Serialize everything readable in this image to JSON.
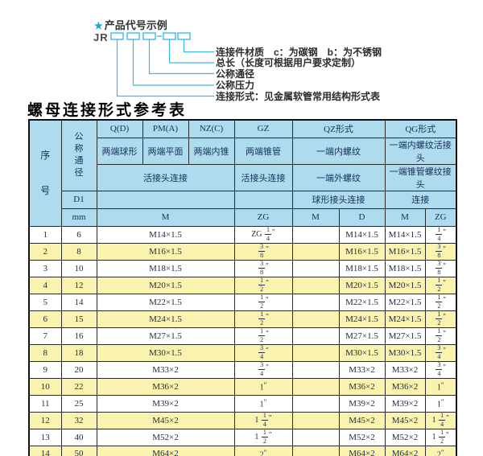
{
  "diagram": {
    "star": "★",
    "title": "产品代号示例",
    "code_prefix": "JR",
    "labels": [
      "连接件材质　c：为碳钢　b：为不锈钢",
      "总长（长度可根据用户要求定制）",
      "公称通径",
      "公称压力",
      "连接形式：见金属软管常用结构形式表"
    ],
    "line_color": "#3fb6e8"
  },
  "table_title": "螺母连接形式参考表",
  "colors": {
    "header_bg": "#AEDBEE",
    "row_alt_bg": "#FAF3AF",
    "accent_blue": "#1e9ed8"
  },
  "table": {
    "header": {
      "col_no": "序号",
      "col_dn": "公称通径",
      "d1": "D1",
      "mm": "mm",
      "q": "Q(D)",
      "pm": "PM(A)",
      "nz": "NZ(C)",
      "gz": "GZ",
      "qz": "QZ形式",
      "qg": "QG形式",
      "q_desc": "两端球形",
      "pm_desc": "两端平面",
      "nz_desc": "两端内锥",
      "gz_desc": "两端锥管",
      "qz_desc1": "一端内螺纹",
      "qg_desc1": "一端内螺纹活接头",
      "union_conn": "活接头连接",
      "gz_conn": "活接头连接",
      "qz_desc2": "一端外螺纹",
      "qg_desc2": "一端锥管螺纹接头",
      "qz_conn": "球形接头连接",
      "qg_conn": "连接",
      "m": "M",
      "zg": "ZG",
      "qz_m": "M",
      "qz_d": "D",
      "qg_m": "M",
      "qg_zg": "ZG"
    },
    "rows": [
      {
        "no": "1",
        "dn": "6",
        "m": "M14×1.5",
        "gz_zg": "ZG 1/4″",
        "qz_m": "",
        "qz_d": "M14×1.5",
        "qg_m": "M14×1.5",
        "qg_zg": "1/4″"
      },
      {
        "no": "2",
        "dn": "8",
        "m": "M16×1.5",
        "gz_zg": "3/8″",
        "qz_m": "",
        "qz_d": "M16×1.5",
        "qg_m": "M16×1.5",
        "qg_zg": "3/8″"
      },
      {
        "no": "3",
        "dn": "10",
        "m": "M18×1.5",
        "gz_zg": "3/8″",
        "qz_m": "",
        "qz_d": "M18×1.5",
        "qg_m": "M18×1.5",
        "qg_zg": "3/8″"
      },
      {
        "no": "4",
        "dn": "12",
        "m": "M20×1.5",
        "gz_zg": "1/2″",
        "qz_m": "",
        "qz_d": "M20×1.5",
        "qg_m": "M20×1.5",
        "qg_zg": "1/2″"
      },
      {
        "no": "5",
        "dn": "14",
        "m": "M22×1.5",
        "gz_zg": "1/2″",
        "qz_m": "",
        "qz_d": "M22×1.5",
        "qg_m": "M22×1.5",
        "qg_zg": "1/2″"
      },
      {
        "no": "6",
        "dn": "15",
        "m": "M24×1.5",
        "gz_zg": "1/2″",
        "qz_m": "",
        "qz_d": "M24×1.5",
        "qg_m": "M24×1.5",
        "qg_zg": "1/2″"
      },
      {
        "no": "7",
        "dn": "16",
        "m": "M27×1.5",
        "gz_zg": "1/2″",
        "qz_m": "",
        "qz_d": "M27×1.5",
        "qg_m": "M27×1.5",
        "qg_zg": "1/2″"
      },
      {
        "no": "8",
        "dn": "18",
        "m": "M30×1.5",
        "gz_zg": "3/4″",
        "qz_m": "",
        "qz_d": "M30×1.5",
        "qg_m": "M30×1.5",
        "qg_zg": "3/4″"
      },
      {
        "no": "9",
        "dn": "20",
        "m": "M33×2",
        "gz_zg": "3/4″",
        "qz_m": "",
        "qz_d": "M33×2",
        "qg_m": "M33×2",
        "qg_zg": "3/4″"
      },
      {
        "no": "10",
        "dn": "22",
        "m": "M36×2",
        "gz_zg": "1″",
        "qz_m": "",
        "qz_d": "M36×2",
        "qg_m": "M36×2",
        "qg_zg": "1″"
      },
      {
        "no": "11",
        "dn": "25",
        "m": "M39×2",
        "gz_zg": "1″",
        "qz_m": "",
        "qz_d": "M39×2",
        "qg_m": "M39×2",
        "qg_zg": "1″"
      },
      {
        "no": "12",
        "dn": "32",
        "m": "M45×2",
        "gz_zg": "1 1/4″",
        "qz_m": "",
        "qz_d": "M45×2",
        "qg_m": "M45×2",
        "qg_zg": "1 1/4″"
      },
      {
        "no": "13",
        "dn": "40",
        "m": "M52×2",
        "gz_zg": "1 1/2″",
        "qz_m": "",
        "qz_d": "M52×2",
        "qg_m": "M52×2",
        "qg_zg": "1 1/2″"
      },
      {
        "no": "14",
        "dn": "50",
        "m": "M64×2",
        "gz_zg": "2″",
        "qz_m": "",
        "qz_d": "M64×2",
        "qg_m": "M64×2",
        "qg_zg": "2″"
      }
    ]
  }
}
